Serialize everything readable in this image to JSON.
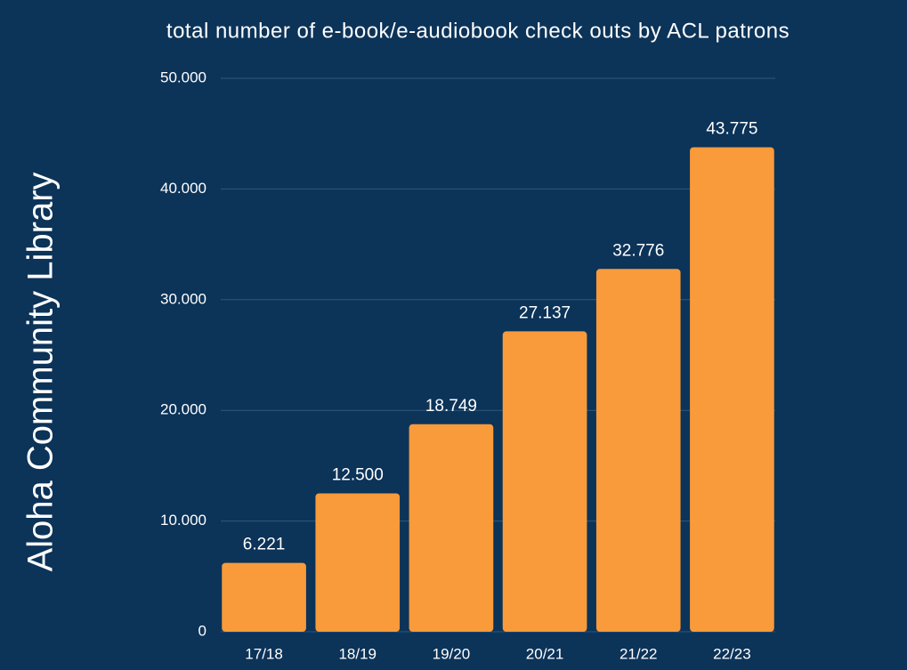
{
  "chart_data": {
    "type": "bar",
    "title": "total number of e-book/e-audiobook check outs by ACL patrons",
    "side_label": "Aloha Community Library",
    "categories": [
      "17/18",
      "18/19",
      "19/20",
      "20/21",
      "21/22",
      "22/23"
    ],
    "values": [
      6221,
      12500,
      18749,
      27137,
      32776,
      43775
    ],
    "value_labels": [
      "6.221",
      "12.500",
      "18.749",
      "27.137",
      "32.776",
      "43.775"
    ],
    "color": "#f99a3b",
    "ylim": [
      0,
      50000
    ],
    "yticks": [
      0,
      {
        "value": 10000,
        "label": "10.000"
      },
      {
        "value": 20000,
        "label": "20.000"
      },
      {
        "value": 30000,
        "label": "30.000"
      },
      {
        "value": 40000,
        "label": "40.000"
      },
      {
        "value": 50000,
        "label": "50.000"
      }
    ],
    "grid": true
  }
}
